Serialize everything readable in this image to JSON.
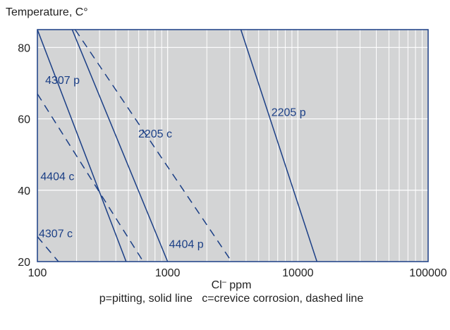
{
  "chart_data": {
    "type": "line",
    "ylabel": "Temperature, C°",
    "xlabel_main": "Cl",
    "xlabel_sup": "–",
    "xlabel_unit": " ppm",
    "caption": "p=pitting, solid line   c=crevice corrosion, dashed line",
    "x_scale": "log",
    "xlim": [
      100,
      100000
    ],
    "ylim": [
      20,
      85
    ],
    "x_ticks": [
      100,
      1000,
      10000,
      100000
    ],
    "x_tick_labels": [
      "100",
      "1000",
      "10000",
      "100000"
    ],
    "y_ticks": [
      20,
      40,
      60,
      80
    ],
    "y_tick_labels": [
      "20",
      "40",
      "60",
      "80"
    ],
    "grid": "vertical minor log gridlines and horizontal lines at y ticks",
    "colors": {
      "plot_bg": "#d3d4d5",
      "line": "#1b3f86",
      "grid": "#ffffff",
      "text": "#1b3f86",
      "axis_text": "#222222"
    },
    "series": [
      {
        "name": "4307 p",
        "style": "solid",
        "x": [
          100,
          480
        ],
        "y": [
          85,
          20
        ]
      },
      {
        "name": "4404 p",
        "style": "solid",
        "x": [
          185,
          1000
        ],
        "y": [
          85,
          20
        ]
      },
      {
        "name": "2205 p",
        "style": "solid",
        "x": [
          3650,
          14000
        ],
        "y": [
          85,
          20
        ]
      },
      {
        "name": "4307 c",
        "style": "dashed",
        "x": [
          100,
          145
        ],
        "y": [
          27,
          20
        ]
      },
      {
        "name": "4404 c",
        "style": "dashed",
        "x": [
          100,
          650
        ],
        "y": [
          67,
          20
        ]
      },
      {
        "name": "2205 c",
        "style": "dashed",
        "x": [
          195,
          3100
        ],
        "y": [
          85,
          20
        ]
      }
    ],
    "annotations": [
      {
        "text": "4307 p",
        "x": 112,
        "y": 71
      },
      {
        "text": "2205 c",
        "x": 580,
        "y": 56
      },
      {
        "text": "2205 p",
        "x": 6100,
        "y": 62
      },
      {
        "text": "4404 c",
        "x": 103,
        "y": 44
      },
      {
        "text": "4307 c",
        "x": 100,
        "y": 28
      },
      {
        "text": "4404 p",
        "x": 1000,
        "y": 25
      }
    ]
  }
}
